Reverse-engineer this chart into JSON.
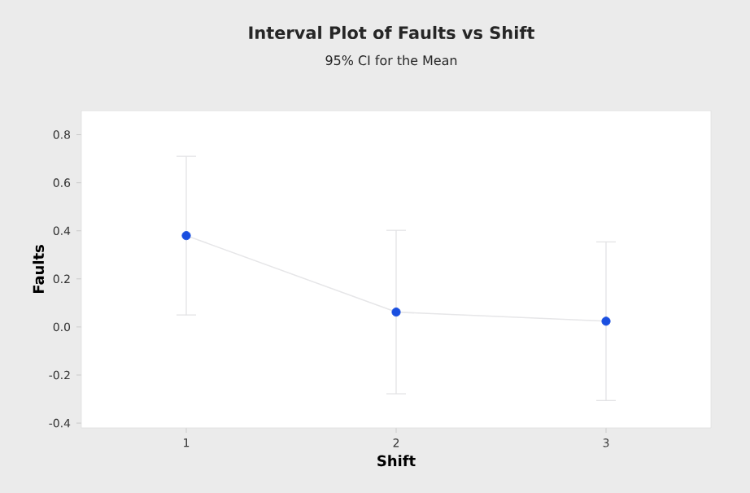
{
  "chart_data": {
    "type": "line",
    "title": "Interval Plot of Faults vs Shift",
    "subtitle": "95% CI for the Mean",
    "xlabel": "Shift",
    "ylabel": "Faults",
    "categories": [
      "1",
      "2",
      "3"
    ],
    "values": [
      0.38,
      0.062,
      0.024
    ],
    "errors": [
      0.33,
      0.34,
      0.33
    ],
    "color": "#1a4fe0",
    "marker": "circle",
    "ylim": [
      -0.42,
      0.9
    ],
    "yticks": [
      -0.4,
      -0.2,
      {
        "value": 0,
        "label": "0.0"
      },
      0.2,
      0.4,
      0.6,
      0.8
    ]
  }
}
